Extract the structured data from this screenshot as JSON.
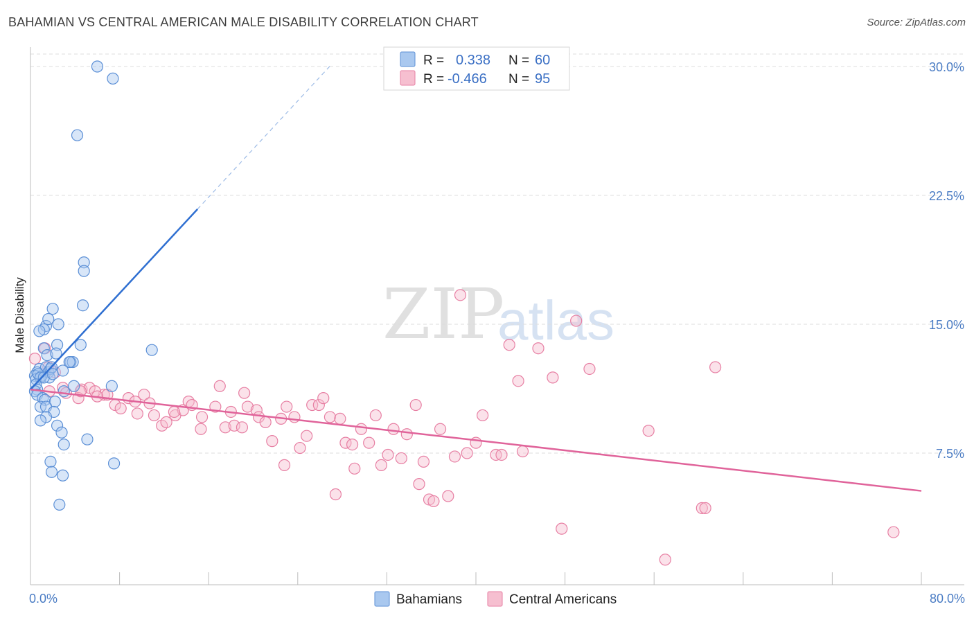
{
  "title": "BAHAMIAN VS CENTRAL AMERICAN MALE DISABILITY CORRELATION CHART",
  "source": "Source: ZipAtlas.com",
  "watermark": {
    "zip": "ZIP",
    "atlas": "atlas"
  },
  "colors": {
    "bahamians_fill": "#a9c8ef",
    "bahamians_stroke": "#5b8fd6",
    "bahamians_line": "#2f6fd1",
    "central_fill": "#f6bfd0",
    "central_stroke": "#e77fa3",
    "central_line": "#e0639a",
    "grid": "#dddddd",
    "tick_label": "#4a7cc4"
  },
  "legend": {
    "rows": [
      {
        "r_label": "R =",
        "r_value": "0.338",
        "n_label": "N =",
        "n_value": "60"
      },
      {
        "r_label": "R =",
        "r_value": "-0.466",
        "n_label": "N =",
        "n_value": "95"
      }
    ]
  },
  "bottom_legend": [
    "Bahamians",
    "Central Americans"
  ],
  "chart_data": {
    "type": "scatter",
    "title": "BAHAMIAN VS CENTRAL AMERICAN MALE DISABILITY CORRELATION CHART",
    "xlabel": "",
    "ylabel": "Male Disability",
    "xlim": [
      0,
      80
    ],
    "ylim": [
      0,
      31
    ],
    "x_tick_labels": [
      "0.0%",
      "80.0%"
    ],
    "y_ticks": [
      7.5,
      15.0,
      22.5,
      30.0
    ],
    "y_tick_labels": [
      "7.5%",
      "15.0%",
      "22.5%",
      "30.0%"
    ],
    "grid": "horizontal dashed",
    "legend_position": "top-center",
    "series": [
      {
        "name": "Bahamians",
        "r": 0.338,
        "n": 60,
        "trend": {
          "x1": 0.0,
          "y1": 11.2,
          "x2": 15.0,
          "y2": 21.7,
          "dashed_to_x": 27.0,
          "dashed_to_y": 30.1
        },
        "points": [
          [
            6.0,
            30.0
          ],
          [
            7.4,
            29.3
          ],
          [
            4.2,
            26.0
          ],
          [
            4.8,
            18.6
          ],
          [
            4.8,
            18.1
          ],
          [
            4.7,
            16.1
          ],
          [
            2.0,
            15.9
          ],
          [
            2.5,
            15.0
          ],
          [
            1.4,
            14.9
          ],
          [
            1.2,
            14.7
          ],
          [
            0.8,
            14.6
          ],
          [
            1.6,
            15.3
          ],
          [
            4.5,
            13.8
          ],
          [
            2.4,
            13.8
          ],
          [
            1.2,
            13.6
          ],
          [
            1.5,
            13.2
          ],
          [
            2.3,
            13.3
          ],
          [
            0.8,
            12.4
          ],
          [
            1.0,
            12.0
          ],
          [
            1.4,
            12.5
          ],
          [
            1.6,
            12.2
          ],
          [
            1.8,
            12.4
          ],
          [
            1.7,
            11.9
          ],
          [
            0.6,
            12.2
          ],
          [
            0.4,
            12.0
          ],
          [
            0.5,
            11.8
          ],
          [
            0.7,
            12.1
          ],
          [
            0.9,
            11.9
          ],
          [
            1.2,
            11.9
          ],
          [
            1.9,
            12.5
          ],
          [
            3.6,
            12.8
          ],
          [
            3.8,
            12.8
          ],
          [
            2.9,
            12.3
          ],
          [
            0.5,
            11.5
          ],
          [
            0.6,
            11.2
          ],
          [
            0.4,
            11.1
          ],
          [
            0.6,
            10.9
          ],
          [
            1.1,
            10.7
          ],
          [
            1.3,
            10.6
          ],
          [
            2.2,
            10.5
          ],
          [
            0.9,
            10.2
          ],
          [
            1.4,
            10.2
          ],
          [
            2.1,
            9.9
          ],
          [
            1.4,
            9.6
          ],
          [
            0.9,
            9.4
          ],
          [
            2.4,
            9.1
          ],
          [
            2.8,
            8.7
          ],
          [
            3.0,
            8.0
          ],
          [
            5.1,
            8.3
          ],
          [
            7.3,
            11.4
          ],
          [
            10.9,
            13.5
          ],
          [
            7.5,
            6.9
          ],
          [
            1.8,
            7.0
          ],
          [
            1.9,
            6.4
          ],
          [
            2.9,
            6.2
          ],
          [
            2.6,
            4.5
          ],
          [
            3.9,
            11.4
          ],
          [
            3.5,
            12.8
          ],
          [
            3.0,
            11.1
          ],
          [
            2.0,
            12.1
          ]
        ]
      },
      {
        "name": "Central Americans",
        "r": -0.466,
        "n": 95,
        "trend": {
          "x1": 0.0,
          "y1": 11.2,
          "x2": 80.0,
          "y2": 5.3
        },
        "points": [
          [
            0.4,
            13.0
          ],
          [
            1.3,
            13.6
          ],
          [
            1.6,
            12.5
          ],
          [
            2.2,
            12.2
          ],
          [
            1.7,
            11.1
          ],
          [
            2.9,
            11.3
          ],
          [
            3.2,
            11.0
          ],
          [
            4.6,
            11.2
          ],
          [
            5.3,
            11.3
          ],
          [
            6.6,
            10.9
          ],
          [
            4.3,
            10.7
          ],
          [
            4.5,
            11.1
          ],
          [
            5.8,
            11.1
          ],
          [
            6.9,
            10.9
          ],
          [
            7.6,
            10.3
          ],
          [
            8.1,
            10.1
          ],
          [
            8.8,
            10.7
          ],
          [
            9.4,
            10.5
          ],
          [
            9.6,
            9.8
          ],
          [
            10.2,
            10.9
          ],
          [
            10.7,
            10.4
          ],
          [
            11.1,
            9.7
          ],
          [
            11.8,
            9.1
          ],
          [
            12.2,
            9.3
          ],
          [
            13.0,
            9.7
          ],
          [
            13.7,
            10.0
          ],
          [
            14.2,
            10.5
          ],
          [
            14.5,
            10.3
          ],
          [
            15.4,
            9.6
          ],
          [
            15.3,
            8.9
          ],
          [
            16.6,
            10.2
          ],
          [
            17.0,
            11.4
          ],
          [
            17.5,
            9.0
          ],
          [
            18.3,
            9.1
          ],
          [
            19.0,
            9.0
          ],
          [
            19.5,
            10.2
          ],
          [
            20.3,
            10.0
          ],
          [
            20.5,
            9.6
          ],
          [
            21.1,
            9.3
          ],
          [
            21.7,
            8.2
          ],
          [
            22.5,
            9.5
          ],
          [
            23.0,
            10.2
          ],
          [
            23.7,
            9.6
          ],
          [
            24.2,
            7.8
          ],
          [
            24.8,
            8.5
          ],
          [
            25.3,
            10.3
          ],
          [
            25.9,
            10.3
          ],
          [
            26.3,
            10.7
          ],
          [
            26.9,
            9.6
          ],
          [
            27.8,
            9.5
          ],
          [
            28.3,
            8.1
          ],
          [
            29.1,
            6.6
          ],
          [
            29.7,
            8.9
          ],
          [
            30.4,
            8.1
          ],
          [
            31.0,
            9.7
          ],
          [
            31.5,
            6.8
          ],
          [
            32.1,
            7.4
          ],
          [
            32.6,
            8.9
          ],
          [
            33.3,
            7.2
          ],
          [
            33.8,
            8.6
          ],
          [
            34.6,
            10.3
          ],
          [
            34.9,
            5.7
          ],
          [
            35.3,
            7.0
          ],
          [
            35.8,
            4.8
          ],
          [
            36.2,
            4.7
          ],
          [
            36.8,
            8.9
          ],
          [
            37.5,
            5.0
          ],
          [
            38.1,
            7.3
          ],
          [
            39.2,
            7.5
          ],
          [
            40.0,
            8.1
          ],
          [
            40.6,
            9.7
          ],
          [
            41.8,
            7.4
          ],
          [
            42.3,
            7.4
          ],
          [
            43.0,
            13.8
          ],
          [
            43.8,
            11.7
          ],
          [
            44.2,
            7.6
          ],
          [
            45.6,
            13.6
          ],
          [
            46.9,
            11.9
          ],
          [
            47.7,
            3.1
          ],
          [
            49.0,
            15.2
          ],
          [
            50.2,
            12.4
          ],
          [
            55.5,
            8.8
          ],
          [
            57.0,
            1.3
          ],
          [
            60.3,
            4.3
          ],
          [
            60.6,
            4.3
          ],
          [
            61.5,
            12.5
          ],
          [
            38.6,
            16.7
          ],
          [
            27.4,
            5.1
          ],
          [
            28.9,
            8.0
          ],
          [
            22.8,
            6.8
          ],
          [
            19.2,
            11.0
          ],
          [
            12.9,
            9.9
          ],
          [
            6.0,
            10.8
          ],
          [
            18.0,
            9.9
          ],
          [
            77.5,
            2.9
          ]
        ]
      }
    ]
  }
}
